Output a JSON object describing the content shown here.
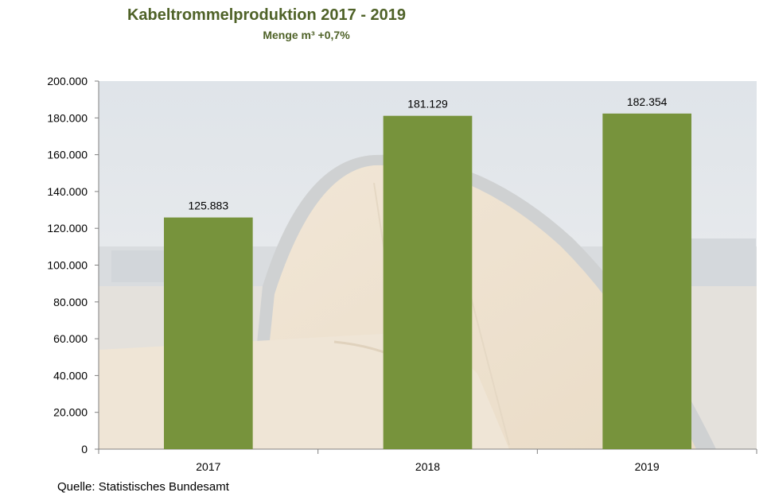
{
  "colors": {
    "bar": "#77933c",
    "title": "#4f6228",
    "axis": "#808080"
  },
  "chart_data": {
    "type": "bar",
    "title": "Kabeltrommelproduktion  2017 - 2019",
    "subtitle": "Menge m³ +0,7%",
    "categories": [
      "2017",
      "2018",
      "2019"
    ],
    "values": [
      125883,
      181129,
      182354
    ],
    "value_labels": [
      "125.883",
      "181.129",
      "182.354"
    ],
    "ylim": [
      0,
      200000
    ],
    "y_ticks": [
      0,
      20000,
      40000,
      60000,
      80000,
      100000,
      120000,
      140000,
      160000,
      180000,
      200000
    ],
    "y_tick_labels": [
      "0",
      "20.000",
      "40.000",
      "60.000",
      "80.000",
      "100.000",
      "120.000",
      "140.000",
      "160.000",
      "180.000",
      "200.000"
    ],
    "background": "photo of a wooden cable drum",
    "grid": false,
    "legend": "none"
  },
  "source": "Quelle: Statistisches Bundesamt"
}
